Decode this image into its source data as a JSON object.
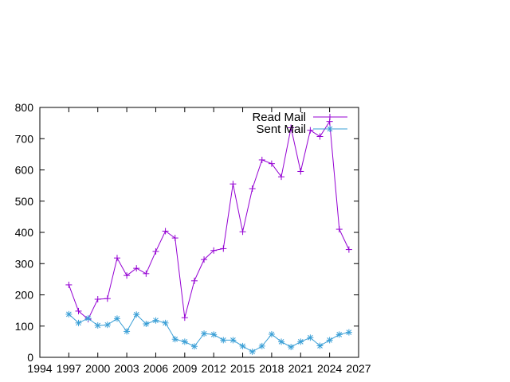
{
  "chart_data": {
    "type": "line",
    "title": "",
    "xlabel": "",
    "ylabel": "",
    "xlim": [
      1994,
      2027
    ],
    "ylim": [
      0,
      800
    ],
    "x_ticks": [
      1994,
      1997,
      2000,
      2003,
      2006,
      2009,
      2012,
      2015,
      2018,
      2021,
      2024,
      2027
    ],
    "y_ticks": [
      0,
      100,
      200,
      300,
      400,
      500,
      600,
      700,
      800
    ],
    "grid": false,
    "legend_position": "top-right",
    "x": [
      1997,
      1998,
      1999,
      2000,
      2001,
      2002,
      2003,
      2004,
      2005,
      2006,
      2007,
      2008,
      2009,
      2010,
      2011,
      2012,
      2013,
      2014,
      2015,
      2016,
      2017,
      2018,
      2019,
      2020,
      2021,
      2022,
      2023,
      2024,
      2025,
      2026
    ],
    "series": [
      {
        "name": "Read Mail",
        "color": "#9400d3",
        "marker": "plus",
        "values": [
          232,
          148,
          122,
          186,
          188,
          318,
          262,
          285,
          268,
          339,
          404,
          382,
          127,
          245,
          313,
          342,
          348,
          555,
          402,
          540,
          632,
          620,
          578,
          735,
          595,
          727,
          707,
          755,
          410,
          345
        ]
      },
      {
        "name": "Sent Mail",
        "color": "#3a9fd6",
        "marker": "star",
        "values": [
          138,
          110,
          125,
          102,
          104,
          124,
          83,
          137,
          107,
          118,
          110,
          58,
          50,
          35,
          76,
          73,
          55,
          55,
          36,
          18,
          36,
          74,
          50,
          33,
          50,
          63,
          37,
          55,
          73,
          80
        ]
      }
    ]
  }
}
